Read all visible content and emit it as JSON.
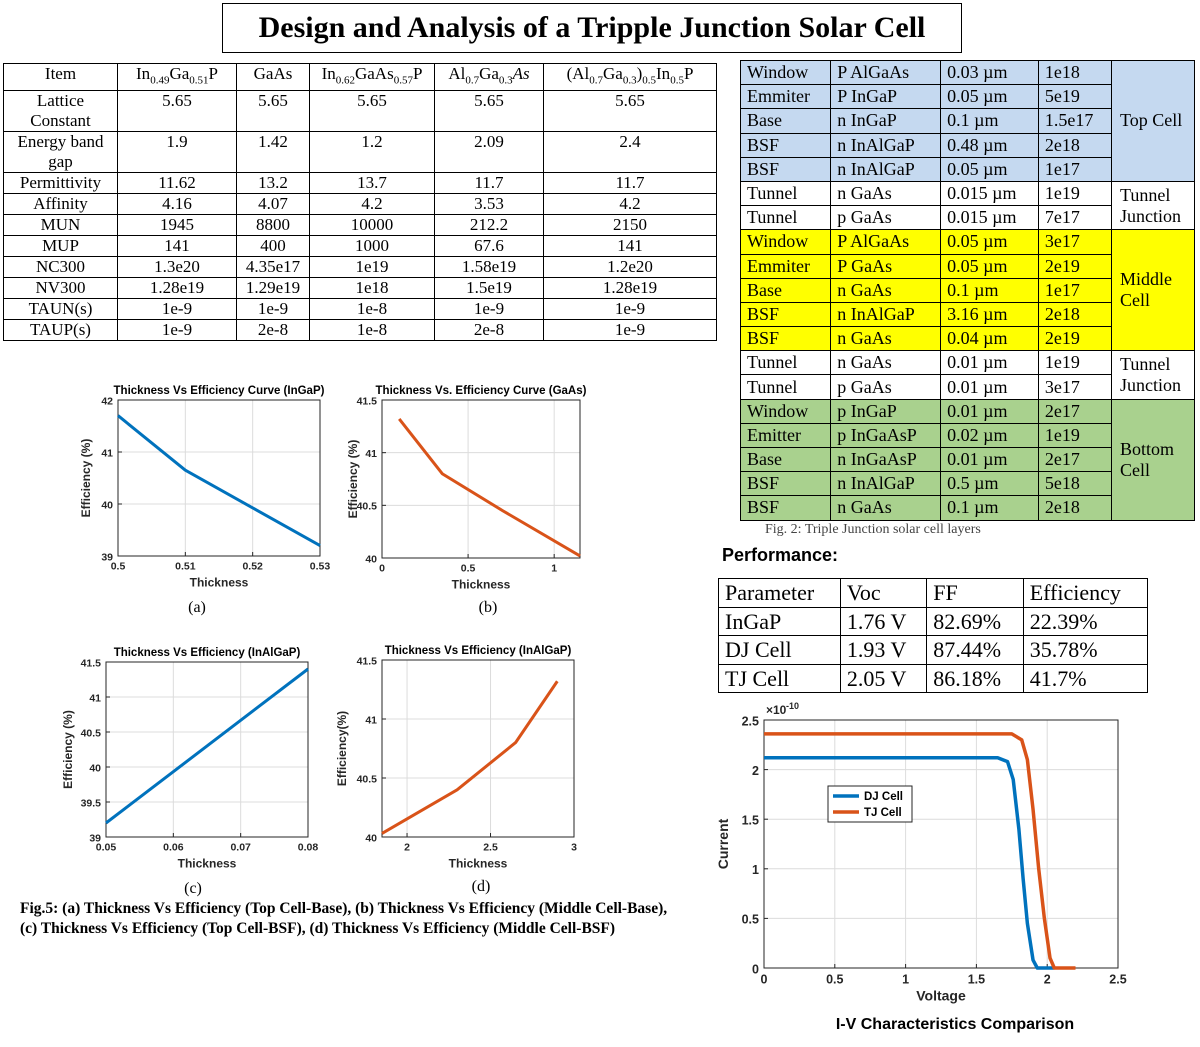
{
  "title": "Design and Analysis of a Tripple Junction Solar Cell",
  "materials": {
    "headers": [
      "Item",
      "In0.49Ga0.51P",
      "GaAs",
      "In0.62GaAs0.57P",
      "Al0.7Ga0.3As",
      "(Al0.7Ga0.3)0.5In0.5P"
    ],
    "rows": [
      {
        "item": "Lattice Constant",
        "values": [
          "5.65",
          "5.65",
          "5.65",
          "5.65",
          "5.65"
        ]
      },
      {
        "item": "Energy band gap",
        "values": [
          "1.9",
          "1.42",
          "1.2",
          "2.09",
          "2.4"
        ]
      },
      {
        "item": "Permittivity",
        "values": [
          "11.62",
          "13.2",
          "13.7",
          "11.7",
          "11.7"
        ]
      },
      {
        "item": "Affinity",
        "values": [
          "4.16",
          "4.07",
          "4.2",
          "3.53",
          "4.2"
        ]
      },
      {
        "item": "MUN",
        "values": [
          "1945",
          "8800",
          "10000",
          "212.2",
          "2150"
        ]
      },
      {
        "item": "MUP",
        "values": [
          "141",
          "400",
          "1000",
          "67.6",
          "141"
        ]
      },
      {
        "item": "NC300",
        "values": [
          "1.3e20",
          "4.35e17",
          "1e19",
          "1.58e19",
          "1.2e20"
        ]
      },
      {
        "item": "NV300",
        "values": [
          "1.28e19",
          "1.29e19",
          "1e18",
          "1.5e19",
          "1.28e19"
        ]
      },
      {
        "item": "TAUN(s)",
        "values": [
          "1e-9",
          "1e-9",
          "1e-8",
          "1e-9",
          "1e-9"
        ]
      },
      {
        "item": "TAUP(s)",
        "values": [
          "1e-9",
          "2e-8",
          "1e-8",
          "2e-8",
          "1e-9"
        ]
      }
    ]
  },
  "layers": {
    "rows": [
      {
        "layer": "Window",
        "material": "P AlGaAs",
        "thickness": "0.03 µm",
        "doping": "1e18",
        "color": "#c5d9f0"
      },
      {
        "layer": "Emmiter",
        "material": "P InGaP",
        "thickness": "0.05 µm",
        "doping": "5e19",
        "color": "#c5d9f0"
      },
      {
        "layer": "Base",
        "material": "n InGaP",
        "thickness": "0.1 µm",
        "doping": "1.5e17",
        "color": "#c5d9f0"
      },
      {
        "layer": "BSF",
        "material": "n InAlGaP",
        "thickness": "0.48 µm",
        "doping": "2e18",
        "color": "#c5d9f0"
      },
      {
        "layer": "BSF",
        "material": "n InAlGaP",
        "thickness": "0.05 µm",
        "doping": "1e17",
        "color": "#c5d9f0"
      },
      {
        "layer": "Tunnel",
        "material": "n GaAs",
        "thickness": "0.015 µm",
        "doping": "1e19",
        "color": "#ffffff"
      },
      {
        "layer": "Tunnel",
        "material": "p GaAs",
        "thickness": "0.015 µm",
        "doping": "7e17",
        "color": "#ffffff"
      },
      {
        "layer": "Window",
        "material": "P AlGaAs",
        "thickness": "0.05 µm",
        "doping": "3e17",
        "color": "#ffff00"
      },
      {
        "layer": "Emmiter",
        "material": "P GaAs",
        "thickness": "0.05 µm",
        "doping": "2e19",
        "color": "#ffff00"
      },
      {
        "layer": "Base",
        "material": "n GaAs",
        "thickness": "0.1 µm",
        "doping": "1e17",
        "color": "#ffff00"
      },
      {
        "layer": "BSF",
        "material": "n InAlGaP",
        "thickness": "3.16 µm",
        "doping": "2e18",
        "color": "#ffff00"
      },
      {
        "layer": "BSF",
        "material": "n GaAs",
        "thickness": "0.04 µm",
        "doping": "2e19",
        "color": "#ffff00"
      },
      {
        "layer": "Tunnel",
        "material": "n GaAs",
        "thickness": "0.01 µm",
        "doping": "1e19",
        "color": "#ffffff"
      },
      {
        "layer": "Tunnel",
        "material": "p GaAs",
        "thickness": "0.01 µm",
        "doping": "3e17",
        "color": "#ffffff"
      },
      {
        "layer": "Window",
        "material": "p InGaP",
        "thickness": "0.01 µm",
        "doping": "2e17",
        "color": "#a9d18e"
      },
      {
        "layer": "Emitter",
        "material": "p InGaAsP",
        "thickness": "0.02 µm",
        "doping": "1e19",
        "color": "#a9d18e"
      },
      {
        "layer": "Base",
        "material": "n InGaAsP",
        "thickness": "0.01 µm",
        "doping": "2e17",
        "color": "#a9d18e"
      },
      {
        "layer": "BSF",
        "material": "n InAlGaP",
        "thickness": "0.5 µm",
        "doping": "5e18",
        "color": "#a9d18e"
      },
      {
        "layer": "BSF",
        "material": "n GaAs",
        "thickness": "0.1 µm",
        "doping": "2e18",
        "color": "#a9d18e"
      }
    ],
    "groups": [
      {
        "label": "Top Cell",
        "start": 0,
        "span": 5,
        "color": "#c5d9f0"
      },
      {
        "label": "Tunnel Junction",
        "start": 5,
        "span": 2,
        "color": "#ffffff"
      },
      {
        "label": "Middle Cell",
        "start": 7,
        "span": 5,
        "color": "#ffff00"
      },
      {
        "label": "Tunnel Junction",
        "start": 12,
        "span": 2,
        "color": "#ffffff"
      },
      {
        "label": "Bottom Cell",
        "start": 14,
        "span": 5,
        "color": "#a9d18e"
      }
    ],
    "cutoff_caption": "Fig. 2: Triple Junction solar cell layers"
  },
  "performance": {
    "heading": "Performance:",
    "headers": [
      "Parameter",
      "Voc",
      "FF",
      "Efficiency"
    ],
    "rows": [
      [
        "InGaP",
        "1.76 V",
        "82.69%",
        "22.39%"
      ],
      [
        "DJ Cell",
        "1.93 V",
        "87.44%",
        "35.78%"
      ],
      [
        "TJ Cell",
        "2.05 V",
        "86.18%",
        "41.7%"
      ]
    ]
  },
  "figure5_caption": "Fig.5: (a) Thickness Vs Efficiency (Top Cell-Base), (b) Thickness Vs Efficiency (Middle Cell-Base), (c) Thickness Vs Efficiency (Top Cell-BSF), (d) Thickness Vs Efficiency (Middle Cell-BSF)",
  "iv_caption": "I-V Characteristics Comparison",
  "chart_data": [
    {
      "id": "a",
      "panel_label": "(a)",
      "type": "line",
      "title": "Thickness Vs Efficiency Curve (InGaP)",
      "xlabel": "Thickness",
      "ylabel": "Efficiency (%)",
      "xlim": [
        0.5,
        0.53
      ],
      "ylim": [
        39,
        42
      ],
      "xticks": [
        0.5,
        0.51,
        0.52,
        0.53
      ],
      "xtick_labels": [
        "0.5",
        "0.51",
        "0.52",
        "0.53"
      ],
      "yticks": [
        39,
        40,
        41,
        42
      ],
      "ytick_labels": [
        "39",
        "40",
        "41",
        "42"
      ],
      "grid": true,
      "color": "#0072bd",
      "series": [
        {
          "x": [
            0.5,
            0.51,
            0.53
          ],
          "y": [
            41.7,
            40.65,
            39.2
          ]
        }
      ]
    },
    {
      "id": "b",
      "panel_label": "(b)",
      "type": "line",
      "title": "Thickness Vs. Efficiency Curve (GaAs)",
      "xlabel": "Thickness",
      "ylabel": "Efficiency (%)",
      "xlim": [
        0,
        1.15
      ],
      "ylim": [
        40,
        41.5
      ],
      "xticks": [
        0,
        0.5,
        1
      ],
      "xtick_labels": [
        "0",
        "0.5",
        "1"
      ],
      "yticks": [
        40,
        40.5,
        41,
        41.5
      ],
      "ytick_labels": [
        "40",
        "40.5",
        "41",
        "41.5"
      ],
      "grid": true,
      "color": "#d95319",
      "series": [
        {
          "x": [
            0.1,
            0.35,
            0.7,
            1.15
          ],
          "y": [
            41.32,
            40.8,
            40.45,
            40.02
          ]
        }
      ]
    },
    {
      "id": "c",
      "panel_label": "(c)",
      "type": "line",
      "title": "Thickness Vs Efficiency (InAlGaP)",
      "xlabel": "Thickness",
      "ylabel": "Efficiency (%)",
      "xlim": [
        0.05,
        0.08
      ],
      "ylim": [
        39,
        41.5
      ],
      "xticks": [
        0.05,
        0.06,
        0.07,
        0.08
      ],
      "xtick_labels": [
        "0.05",
        "0.06",
        "0.07",
        "0.08"
      ],
      "yticks": [
        39,
        39.5,
        40,
        40.5,
        41,
        41.5
      ],
      "ytick_labels": [
        "39",
        "39.5",
        "40",
        "40.5",
        "41",
        "41.5"
      ],
      "grid": true,
      "color": "#0072bd",
      "series": [
        {
          "x": [
            0.05,
            0.08
          ],
          "y": [
            39.2,
            41.4
          ]
        }
      ]
    },
    {
      "id": "d",
      "panel_label": "(d)",
      "type": "line",
      "title": "Thickness Vs Efficiency (InAlGaP)",
      "xlabel": "Thickness",
      "ylabel": "Efficiency(%)",
      "xlim": [
        1.85,
        3
      ],
      "ylim": [
        40,
        41.5
      ],
      "xticks": [
        2,
        2.5,
        3
      ],
      "xtick_labels": [
        "2",
        "2.5",
        "3"
      ],
      "yticks": [
        40,
        40.5,
        41,
        41.5
      ],
      "ytick_labels": [
        "40",
        "40.5",
        "41",
        "41.5"
      ],
      "grid": true,
      "color": "#d95319",
      "series": [
        {
          "x": [
            1.85,
            2.3,
            2.65,
            2.9
          ],
          "y": [
            40.03,
            40.4,
            40.8,
            41.32
          ]
        }
      ]
    },
    {
      "id": "iv",
      "type": "line",
      "title": "",
      "xlabel": "Voltage",
      "ylabel": "Current",
      "y_exponent_label": "×10",
      "y_exponent_power": "-10",
      "xlim": [
        0,
        2.5
      ],
      "ylim": [
        0,
        2.5
      ],
      "xticks": [
        0,
        0.5,
        1,
        1.5,
        2,
        2.5
      ],
      "xtick_labels": [
        "0",
        "0.5",
        "1",
        "1.5",
        "2",
        "2.5"
      ],
      "yticks": [
        0,
        0.5,
        1,
        1.5,
        2,
        2.5
      ],
      "ytick_labels": [
        "0",
        "0.5",
        "1",
        "1.5",
        "2",
        "2.5"
      ],
      "grid": true,
      "legend": "upper-left",
      "series": [
        {
          "name": "DJ Cell",
          "color": "#0072bd",
          "x": [
            0,
            1.65,
            1.72,
            1.76,
            1.8,
            1.83,
            1.86,
            1.9,
            1.93,
            2.05
          ],
          "y": [
            2.12,
            2.12,
            2.08,
            1.9,
            1.4,
            0.9,
            0.45,
            0.08,
            0,
            0
          ]
        },
        {
          "name": "TJ Cell",
          "color": "#d95319",
          "x": [
            0,
            1.75,
            1.82,
            1.86,
            1.9,
            1.94,
            1.98,
            2.02,
            2.05,
            2.2
          ],
          "y": [
            2.36,
            2.36,
            2.3,
            2.1,
            1.6,
            1.0,
            0.5,
            0.1,
            0,
            0
          ]
        }
      ]
    }
  ]
}
